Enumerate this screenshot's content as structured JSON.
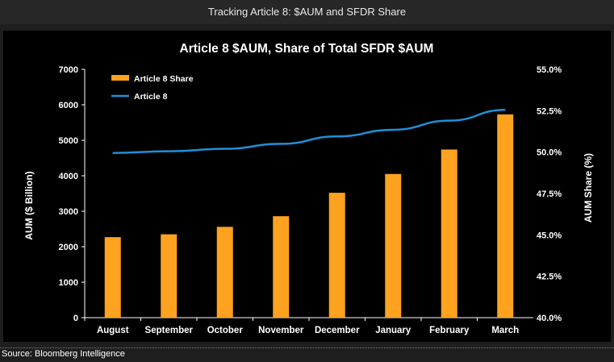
{
  "header": {
    "title": "Tracking Article 8: $AUM and SFDR Share"
  },
  "source": {
    "text": "Source: Bloomberg Intelligence"
  },
  "colors": {
    "bar": "#ffa21f",
    "line": "#1e90d8",
    "text": "#ffffff",
    "background": "#000000"
  },
  "chart_data": {
    "type": "bar",
    "title": "Article 8 $AUM, Share of Total SFDR $AUM",
    "xlabel": "",
    "ylabel": "AUM ($ Billion)",
    "y2label": "AUM Share (%)",
    "categories": [
      "August",
      "September",
      "October",
      "November",
      "December",
      "January",
      "February",
      "March"
    ],
    "ylim": [
      0,
      7000
    ],
    "y_ticks": [
      "0",
      "1000",
      "2000",
      "3000",
      "4000",
      "5000",
      "6000",
      "7000"
    ],
    "y2lim": [
      40.0,
      55.0
    ],
    "y2_ticks": [
      "40.0%",
      "42.5%",
      "45.0%",
      "47.5%",
      "50.0%",
      "52.5%",
      "55.0%"
    ],
    "legend_position": "top-left",
    "series": [
      {
        "name": "Article 8 Share",
        "type": "bar",
        "axis": "left",
        "values": [
          2270,
          2350,
          2560,
          2860,
          3520,
          4050,
          4740,
          5730
        ]
      },
      {
        "name": "Article 8",
        "type": "line",
        "axis": "right",
        "values": [
          49.95,
          50.05,
          50.2,
          50.5,
          50.95,
          51.35,
          51.9,
          52.55
        ]
      }
    ]
  }
}
